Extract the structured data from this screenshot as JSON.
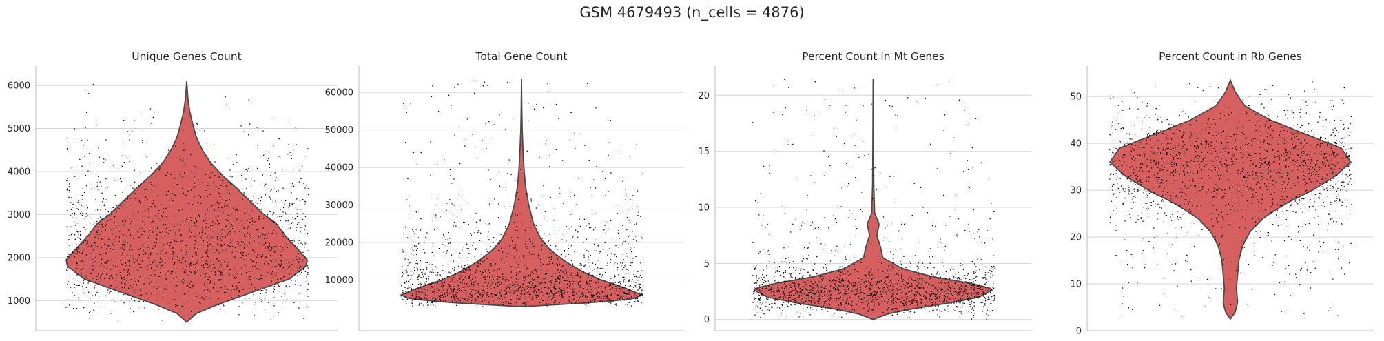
{
  "suptitle": "GSM 4679493 (n_cells = 4876)",
  "colors": {
    "violin": "#d65f5f",
    "violin_edge": "#4a4a4a",
    "points": "#000000",
    "grid": "#d4d4d4",
    "spine": "#c8c8c8"
  },
  "chart_data": [
    {
      "type": "violin",
      "title": "Unique Genes Count",
      "xlabel": "",
      "ylabel": "",
      "ylim": [
        300,
        6450
      ],
      "yticks": [
        1000,
        2000,
        3000,
        4000,
        5000,
        6000
      ],
      "tick_labels": [
        "1000",
        "2000",
        "3000",
        "4000",
        "5000",
        "6000"
      ],
      "range": [
        500,
        6100
      ],
      "profile": [
        [
          500,
          0
        ],
        [
          700,
          0.08
        ],
        [
          900,
          0.25
        ],
        [
          1200,
          0.55
        ],
        [
          1500,
          0.85
        ],
        [
          1800,
          0.99
        ],
        [
          1950,
          1.0
        ],
        [
          2200,
          0.92
        ],
        [
          2500,
          0.82
        ],
        [
          2800,
          0.74
        ],
        [
          3000,
          0.64
        ],
        [
          3300,
          0.53
        ],
        [
          3600,
          0.42
        ],
        [
          3900,
          0.3
        ],
        [
          4200,
          0.2
        ],
        [
          4500,
          0.13
        ],
        [
          4800,
          0.08
        ],
        [
          5100,
          0.05
        ],
        [
          5400,
          0.025
        ],
        [
          5700,
          0.01
        ],
        [
          6100,
          0
        ]
      ],
      "n_points": 1800
    },
    {
      "type": "violin",
      "title": "Total Gene Count",
      "xlabel": "",
      "ylabel": "",
      "ylim": [
        -3500,
        67000
      ],
      "yticks": [
        10000,
        20000,
        30000,
        40000,
        50000,
        60000
      ],
      "tick_labels": [
        "10000",
        "20000",
        "30000",
        "40000",
        "50000",
        "60000"
      ],
      "range": [
        3000,
        63500
      ],
      "profile": [
        [
          3000,
          0.05
        ],
        [
          4000,
          0.6
        ],
        [
          5000,
          0.93
        ],
        [
          6000,
          1.0
        ],
        [
          8000,
          0.85
        ],
        [
          10000,
          0.66
        ],
        [
          12000,
          0.52
        ],
        [
          15000,
          0.36
        ],
        [
          18000,
          0.24
        ],
        [
          21000,
          0.16
        ],
        [
          25000,
          0.1
        ],
        [
          30000,
          0.06
        ],
        [
          35000,
          0.033
        ],
        [
          40000,
          0.02
        ],
        [
          45000,
          0.012
        ],
        [
          50000,
          0.006
        ],
        [
          55000,
          0.003
        ],
        [
          63500,
          0
        ]
      ],
      "n_points": 1800
    },
    {
      "type": "violin",
      "title": "Percent Count in Mt Genes",
      "xlabel": "",
      "ylabel": "",
      "ylim": [
        -1.0,
        22.6
      ],
      "yticks": [
        0,
        5,
        10,
        15,
        20
      ],
      "tick_labels": [
        "0",
        "5",
        "10",
        "15",
        "20"
      ],
      "range": [
        0,
        21.5
      ],
      "profile": [
        [
          0,
          0
        ],
        [
          0.5,
          0.12
        ],
        [
          1,
          0.35
        ],
        [
          1.5,
          0.65
        ],
        [
          2,
          0.88
        ],
        [
          2.7,
          1.0
        ],
        [
          3.2,
          0.82
        ],
        [
          3.8,
          0.5
        ],
        [
          4.5,
          0.25
        ],
        [
          5.5,
          0.08
        ],
        [
          6.5,
          0.06
        ],
        [
          7.5,
          0.03
        ],
        [
          8.5,
          0.05
        ],
        [
          9.5,
          0.012
        ],
        [
          12,
          0.005
        ],
        [
          15,
          0.003
        ],
        [
          21.5,
          0
        ]
      ],
      "n_points": 1800
    },
    {
      "type": "violin",
      "title": "Percent Count in Rb Genes",
      "xlabel": "",
      "ylabel": "",
      "ylim": [
        0,
        56.5
      ],
      "yticks": [
        0,
        10,
        20,
        30,
        40,
        50
      ],
      "tick_labels": [
        "0",
        "10",
        "20",
        "30",
        "40",
        "50"
      ],
      "range": [
        2.5,
        53.5
      ],
      "profile": [
        [
          2.5,
          0
        ],
        [
          4,
          0.04
        ],
        [
          6,
          0.06
        ],
        [
          9,
          0.05
        ],
        [
          12,
          0.06
        ],
        [
          15,
          0.07
        ],
        [
          18,
          0.1
        ],
        [
          21,
          0.16
        ],
        [
          24,
          0.27
        ],
        [
          27,
          0.45
        ],
        [
          30,
          0.68
        ],
        [
          33,
          0.87
        ],
        [
          36,
          1.0
        ],
        [
          39,
          0.92
        ],
        [
          42,
          0.62
        ],
        [
          45,
          0.33
        ],
        [
          48,
          0.12
        ],
        [
          51,
          0.04
        ],
        [
          53.5,
          0
        ]
      ],
      "n_points": 1800
    }
  ]
}
